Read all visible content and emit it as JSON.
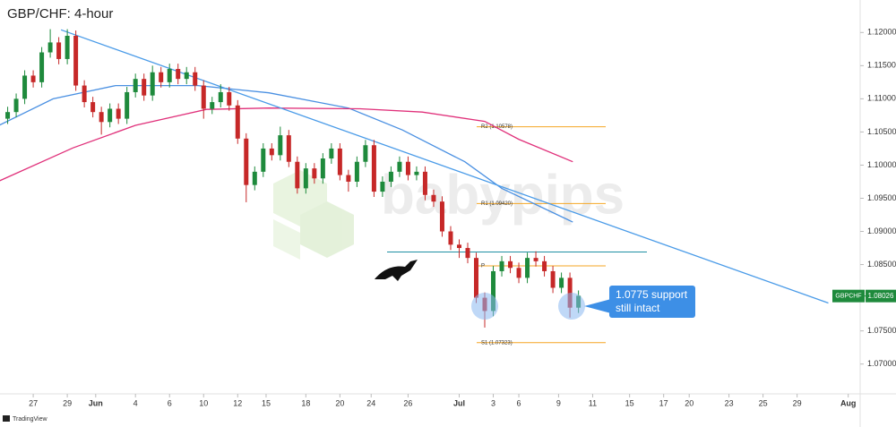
{
  "chart_data": {
    "type": "candlestick",
    "title": "GBP/CHF: 4-hour",
    "watermark": "babypips",
    "footer": "TradingView",
    "annotation": [
      "1.0775 support",
      "still intact"
    ],
    "up_color": "#1e8a3c",
    "down_color": "#c62828",
    "x": [
      -9,
      -6,
      -3,
      0,
      3,
      6,
      9,
      12,
      15,
      18,
      21,
      24,
      27,
      30,
      33,
      36,
      39,
      42,
      45,
      48,
      51,
      54,
      57,
      60,
      63,
      66,
      69,
      72,
      75,
      78,
      81,
      84,
      87,
      90,
      93,
      96,
      99,
      102,
      105,
      108,
      111,
      114,
      117,
      120,
      123,
      126,
      129,
      132,
      135,
      138,
      141,
      144,
      147,
      150,
      153,
      156,
      159,
      162,
      165,
      168,
      171,
      174,
      177,
      180,
      183,
      186,
      189,
      192
    ],
    "open": [
      1.107,
      1.108,
      1.11,
      1.1135,
      1.1125,
      1.117,
      1.1185,
      1.116,
      1.1195,
      1.112,
      1.1095,
      1.108,
      1.1065,
      1.1085,
      1.107,
      1.111,
      1.113,
      1.1105,
      1.114,
      1.1125,
      1.1145,
      1.113,
      1.114,
      1.112,
      1.1085,
      1.1095,
      1.111,
      1.109,
      1.104,
      1.097,
      1.099,
      1.1025,
      1.1015,
      1.1045,
      1.1005,
      1.0965,
      1.0995,
      1.098,
      1.101,
      1.1025,
      1.0985,
      1.0975,
      1.1005,
      1.103,
      1.096,
      1.0975,
      1.099,
      1.1005,
      1.0985,
      1.099,
      1.0955,
      1.0945,
      1.09,
      1.088,
      1.0875,
      1.086,
      1.08,
      1.078,
      1.084,
      1.0855,
      1.0845,
      1.083,
      1.086,
      1.0855,
      1.084,
      1.0815,
      1.083,
      1.0785
    ],
    "high": [
      1.1088,
      1.1108,
      1.1143,
      1.1143,
      1.1178,
      1.1205,
      1.1193,
      1.1205,
      1.1203,
      1.1128,
      1.1103,
      1.1088,
      1.1093,
      1.1093,
      1.1118,
      1.1138,
      1.1138,
      1.115,
      1.1148,
      1.1153,
      1.1153,
      1.1148,
      1.1148,
      1.1128,
      1.1103,
      1.1122,
      1.1118,
      1.1098,
      1.1048,
      1.0998,
      1.1033,
      1.1033,
      1.1058,
      1.1053,
      1.1013,
      1.1003,
      1.1003,
      1.1018,
      1.1033,
      1.1033,
      1.0993,
      1.1013,
      1.1038,
      1.1038,
      1.0983,
      1.0998,
      1.1013,
      1.1013,
      1.0998,
      1.0998,
      1.0963,
      1.0953,
      1.0908,
      1.0888,
      1.0883,
      1.0868,
      1.0808,
      1.0848,
      1.0863,
      1.0863,
      1.0853,
      1.0868,
      1.087,
      1.0863,
      1.0848,
      1.0838,
      1.0838,
      1.0811
    ],
    "low": [
      1.1062,
      1.1072,
      1.1092,
      1.1117,
      1.1117,
      1.1162,
      1.1152,
      1.1152,
      1.1112,
      1.1087,
      1.1072,
      1.1046,
      1.1057,
      1.1062,
      1.1062,
      1.1102,
      1.1097,
      1.1097,
      1.1117,
      1.1117,
      1.1122,
      1.1122,
      1.1112,
      1.107,
      1.1077,
      1.1087,
      1.1082,
      1.1032,
      1.0944,
      1.0962,
      1.0982,
      1.1007,
      1.1007,
      1.0997,
      1.0957,
      1.0957,
      1.0972,
      1.0972,
      1.1002,
      1.0977,
      1.096,
      1.0967,
      1.0997,
      1.0952,
      1.0952,
      1.0967,
      1.0982,
      1.0977,
      1.0977,
      1.0947,
      1.0937,
      1.0892,
      1.0872,
      1.086,
      1.0852,
      1.0792,
      1.0755,
      1.0772,
      1.0832,
      1.0837,
      1.0822,
      1.0822,
      1.0847,
      1.0832,
      1.0807,
      1.0807,
      1.077,
      1.0777
    ],
    "close": [
      1.108,
      1.11,
      1.1135,
      1.1125,
      1.117,
      1.1185,
      1.116,
      1.1195,
      1.112,
      1.1095,
      1.108,
      1.1065,
      1.1085,
      1.107,
      1.111,
      1.113,
      1.1105,
      1.114,
      1.1125,
      1.1145,
      1.113,
      1.114,
      1.112,
      1.1085,
      1.1095,
      1.111,
      1.109,
      1.104,
      1.097,
      1.099,
      1.1025,
      1.1015,
      1.1045,
      1.1005,
      1.0965,
      1.0995,
      1.098,
      1.101,
      1.1025,
      1.0985,
      1.0975,
      1.1005,
      1.103,
      1.096,
      1.0975,
      1.099,
      1.1005,
      1.0985,
      1.099,
      1.0955,
      1.0945,
      1.09,
      1.088,
      1.0875,
      1.086,
      1.08,
      1.078,
      1.084,
      1.0855,
      1.0845,
      1.083,
      1.086,
      1.0855,
      1.084,
      1.0815,
      1.083,
      1.0785,
      1.0803
    ],
    "lines": [
      {
        "color": "#4a90e2",
        "x": [
          -12,
          7,
          29,
          58,
          83,
          111,
          130,
          152,
          165,
          190
        ],
        "values": [
          1.106,
          1.11,
          1.112,
          1.112,
          1.1109,
          1.1086,
          1.1053,
          1.1005,
          1.0965,
          1.0914
        ]
      },
      {
        "color": "#e0307a",
        "x": [
          -12,
          14,
          36,
          61,
          83,
          115,
          137,
          159,
          171,
          190
        ],
        "values": [
          1.0976,
          1.1026,
          1.106,
          1.1084,
          1.1086,
          1.1085,
          1.108,
          1.1066,
          1.1039,
          1.1005
        ]
      },
      {
        "color": "#4a9be8",
        "x": [
          9.8,
          280
        ],
        "values": [
          1.1204,
          1.0792
        ]
      }
    ],
    "levels": [
      {
        "value": 1.0869,
        "color": "#1f8fa3"
      }
    ],
    "pivots": [
      {
        "label": "R2 (1.10578)",
        "value": 1.10578
      },
      {
        "label": "R1 (1.09420)",
        "value": 1.0942
      },
      {
        "label": "P",
        "value": 1.0848
      },
      {
        "label": "S1 (1.07323)",
        "value": 1.07323
      }
    ],
    "pivot_color": "#f5a623",
    "last_price": {
      "symbol": "GBPCHF",
      "value": 1.08026,
      "color": "#1e8a3c"
    },
    "xlim": [
      -11.7,
      291.2
    ],
    "ylim": [
      1.0655,
      1.1249
    ],
    "grid": false,
    "xticks": [
      {
        "value": 0,
        "label": "27"
      },
      {
        "value": 12,
        "label": "29"
      },
      {
        "value": 22,
        "label": "Jun"
      },
      {
        "value": 36,
        "label": "4"
      },
      {
        "value": 48,
        "label": "6"
      },
      {
        "value": 60,
        "label": "10"
      },
      {
        "value": 72,
        "label": "12"
      },
      {
        "value": 82,
        "label": "15"
      },
      {
        "value": 96,
        "label": "18"
      },
      {
        "value": 108,
        "label": "20"
      },
      {
        "value": 119,
        "label": "24"
      },
      {
        "value": 132,
        "label": "26"
      },
      {
        "value": 150,
        "label": "Jul"
      },
      {
        "value": 162,
        "label": "3"
      },
      {
        "value": 171,
        "label": "6"
      },
      {
        "value": 185,
        "label": "9"
      },
      {
        "value": 197,
        "label": "11"
      },
      {
        "value": 210,
        "label": "15"
      },
      {
        "value": 222,
        "label": "17"
      },
      {
        "value": 231,
        "label": "20"
      },
      {
        "value": 245,
        "label": "23"
      },
      {
        "value": 257,
        "label": "25"
      },
      {
        "value": 269,
        "label": "29"
      },
      {
        "value": 287,
        "label": "Aug"
      }
    ],
    "yticks": [
      {
        "value": 1.12,
        "label": "1.12000"
      },
      {
        "value": 1.115,
        "label": "1.11500"
      },
      {
        "value": 1.11,
        "label": "1.11000"
      },
      {
        "value": 1.105,
        "label": "1.10500"
      },
      {
        "value": 1.1,
        "label": "1.10000"
      },
      {
        "value": 1.095,
        "label": "1.09500"
      },
      {
        "value": 1.09,
        "label": "1.09000"
      },
      {
        "value": 1.085,
        "label": "1.08500"
      },
      {
        "value": 1.08,
        "label": "1.08000"
      },
      {
        "value": 1.075,
        "label": "1.07500"
      },
      {
        "value": 1.07,
        "label": "1.07000"
      }
    ]
  }
}
